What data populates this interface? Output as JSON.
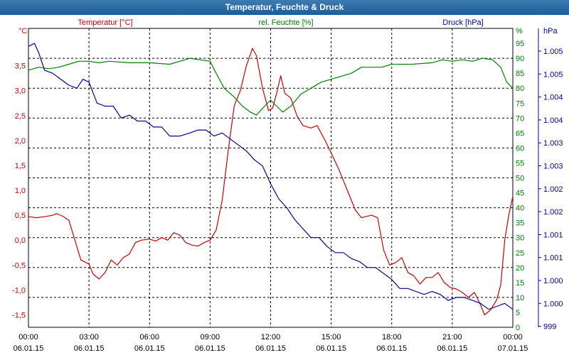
{
  "window": {
    "title": "Temperatur, Feuchte & Druck"
  },
  "colors": {
    "temperature": "#cc0000",
    "humidity": "#008000",
    "pressure": "#000099",
    "titlebar": "#2b6aa5",
    "grid": "#000000"
  },
  "series_labels": {
    "temperature": "Temperatur [°C]",
    "humidity": "rel. Feuchte [%]",
    "pressure": "Druck [hPa]"
  },
  "axis_units": {
    "left": "°C",
    "right_inner": "%",
    "right_outer": "hPa"
  },
  "chart_data": {
    "type": "line",
    "title": "Temperatur, Feuchte & Druck",
    "x_tick_labels": [
      [
        "00:00",
        "06.01.15"
      ],
      [
        "03:00",
        "06.01.15"
      ],
      [
        "06:00",
        "06.01.15"
      ],
      [
        "09:00",
        "06.01.15"
      ],
      [
        "12:00",
        "06.01.15"
      ],
      [
        "15:00",
        "06.01.15"
      ],
      [
        "18:00",
        "06.01.15"
      ],
      [
        "21:00",
        "06.01.15"
      ],
      [
        "00:00",
        "07.01.15"
      ]
    ],
    "x_range_hours": [
      0,
      24
    ],
    "grid": true,
    "axes": {
      "temperature": {
        "side": "left",
        "range": [
          -1.75,
          4.25
        ],
        "ticks": [
          "3,5",
          "3,0",
          "2,5",
          "2,0",
          "1,5",
          "1,0",
          "0,5",
          "0,0",
          "-0,5",
          "-1,0",
          "-1,5"
        ],
        "tick_values": [
          3.5,
          3.0,
          2.5,
          2.0,
          1.5,
          1.0,
          0.5,
          0.0,
          -0.5,
          -1.0,
          -1.5
        ]
      },
      "humidity": {
        "side": "right",
        "range": [
          0,
          100
        ],
        "ticks": [
          "95",
          "90",
          "85",
          "80",
          "75",
          "70",
          "65",
          "60",
          "55",
          "50",
          "45",
          "40",
          "35",
          "30",
          "25",
          "20",
          "15",
          "10",
          "5",
          "0"
        ],
        "tick_values": [
          95,
          90,
          85,
          80,
          75,
          70,
          65,
          60,
          55,
          50,
          45,
          40,
          35,
          30,
          25,
          20,
          15,
          10,
          5,
          0
        ]
      },
      "pressure": {
        "side": "right-outer",
        "ticks": [
          "1.005",
          "1.005",
          "1.004",
          "1.004",
          "1.003",
          "1.003",
          "1.002",
          "1.002",
          "1.001",
          "1.001",
          "1.000",
          "1.000",
          "999"
        ]
      }
    },
    "series": [
      {
        "name": "Temperatur [°C]",
        "axis": "temperature",
        "points": [
          [
            0,
            0.47
          ],
          [
            0.4,
            0.45
          ],
          [
            0.8,
            0.47
          ],
          [
            1.2,
            0.5
          ],
          [
            1.4,
            0.53
          ],
          [
            1.7,
            0.48
          ],
          [
            2.0,
            0.4
          ],
          [
            2.3,
            0.0
          ],
          [
            2.6,
            -0.4
          ],
          [
            3.0,
            -0.48
          ],
          [
            3.2,
            -0.68
          ],
          [
            3.5,
            -0.78
          ],
          [
            3.8,
            -0.65
          ],
          [
            4.1,
            -0.4
          ],
          [
            4.4,
            -0.5
          ],
          [
            4.7,
            -0.35
          ],
          [
            5.0,
            -0.28
          ],
          [
            5.3,
            -0.05
          ],
          [
            5.6,
            0.0
          ],
          [
            6.0,
            0.02
          ],
          [
            6.3,
            -0.02
          ],
          [
            6.6,
            0.05
          ],
          [
            6.9,
            0.0
          ],
          [
            7.2,
            0.15
          ],
          [
            7.5,
            0.1
          ],
          [
            7.8,
            -0.05
          ],
          [
            8.1,
            -0.1
          ],
          [
            8.4,
            -0.12
          ],
          [
            8.7,
            -0.05
          ],
          [
            9.0,
            0.0
          ],
          [
            9.3,
            0.2
          ],
          [
            9.6,
            0.8
          ],
          [
            9.9,
            1.8
          ],
          [
            10.2,
            2.7
          ],
          [
            10.5,
            3.0
          ],
          [
            10.8,
            3.5
          ],
          [
            11.1,
            3.85
          ],
          [
            11.3,
            3.7
          ],
          [
            11.6,
            3.05
          ],
          [
            11.9,
            2.6
          ],
          [
            12.1,
            2.65
          ],
          [
            12.3,
            2.95
          ],
          [
            12.5,
            3.3
          ],
          [
            12.7,
            2.95
          ],
          [
            13.0,
            2.85
          ],
          [
            13.3,
            2.5
          ],
          [
            13.6,
            2.3
          ],
          [
            14.0,
            2.25
          ],
          [
            14.3,
            2.3
          ],
          [
            14.7,
            2.0
          ],
          [
            15.0,
            1.75
          ],
          [
            15.4,
            1.4
          ],
          [
            15.8,
            1.0
          ],
          [
            16.2,
            0.6
          ],
          [
            16.5,
            0.45
          ],
          [
            17.0,
            0.5
          ],
          [
            17.3,
            0.45
          ],
          [
            17.6,
            -0.2
          ],
          [
            17.9,
            -0.5
          ],
          [
            18.2,
            -0.45
          ],
          [
            18.5,
            -0.35
          ],
          [
            18.8,
            -0.65
          ],
          [
            19.1,
            -0.72
          ],
          [
            19.4,
            -0.88
          ],
          [
            19.7,
            -0.75
          ],
          [
            20.0,
            -0.75
          ],
          [
            20.3,
            -0.65
          ],
          [
            20.6,
            -0.85
          ],
          [
            20.9,
            -0.95
          ],
          [
            21.2,
            -0.98
          ],
          [
            21.5,
            -1.05
          ],
          [
            21.8,
            -1.15
          ],
          [
            22.1,
            -1.05
          ],
          [
            22.4,
            -1.3
          ],
          [
            22.6,
            -1.5
          ],
          [
            22.9,
            -1.4
          ],
          [
            23.2,
            -1.2
          ],
          [
            23.4,
            -0.9
          ],
          [
            23.6,
            0.0
          ],
          [
            23.8,
            0.5
          ],
          [
            24.0,
            0.88
          ]
        ]
      },
      {
        "name": "rel. Feuchte [%]",
        "axis": "humidity",
        "points": [
          [
            0,
            86
          ],
          [
            0.5,
            87
          ],
          [
            1.0,
            86.5
          ],
          [
            1.5,
            87
          ],
          [
            2.0,
            88
          ],
          [
            2.5,
            89
          ],
          [
            3.0,
            89
          ],
          [
            3.5,
            88.5
          ],
          [
            4.0,
            89
          ],
          [
            5.0,
            88.5
          ],
          [
            6.0,
            88.5
          ],
          [
            7.0,
            88
          ],
          [
            7.5,
            89
          ],
          [
            8.0,
            90
          ],
          [
            8.5,
            89.5
          ],
          [
            9.0,
            89
          ],
          [
            9.3,
            85
          ],
          [
            9.7,
            80
          ],
          [
            10.2,
            77
          ],
          [
            10.6,
            74
          ],
          [
            11.0,
            72
          ],
          [
            11.3,
            71
          ],
          [
            11.7,
            74
          ],
          [
            12.0,
            76
          ],
          [
            12.3,
            74
          ],
          [
            12.6,
            72
          ],
          [
            13.0,
            74
          ],
          [
            13.5,
            78
          ],
          [
            14.0,
            80
          ],
          [
            14.5,
            82
          ],
          [
            15.0,
            83
          ],
          [
            15.5,
            84
          ],
          [
            16.0,
            85
          ],
          [
            16.5,
            87
          ],
          [
            17.0,
            87
          ],
          [
            17.5,
            87
          ],
          [
            18.0,
            88
          ],
          [
            19.0,
            88
          ],
          [
            20.0,
            88.5
          ],
          [
            20.5,
            89.5
          ],
          [
            21.0,
            89
          ],
          [
            21.5,
            89.5
          ],
          [
            22.0,
            89
          ],
          [
            22.5,
            90
          ],
          [
            23.0,
            89.5
          ],
          [
            23.4,
            87
          ],
          [
            23.7,
            82
          ],
          [
            24.0,
            80
          ]
        ]
      },
      {
        "name": "Druck [hPa]",
        "axis": "pressure",
        "points_axis_scale": "percent",
        "points": [
          [
            0,
            94
          ],
          [
            0.3,
            95
          ],
          [
            0.5,
            92
          ],
          [
            0.8,
            86
          ],
          [
            1.2,
            85
          ],
          [
            1.6,
            83
          ],
          [
            2.0,
            81
          ],
          [
            2.4,
            80
          ],
          [
            2.7,
            83
          ],
          [
            3.0,
            82
          ],
          [
            3.4,
            75
          ],
          [
            3.8,
            74
          ],
          [
            4.2,
            74
          ],
          [
            4.6,
            70
          ],
          [
            5.0,
            71
          ],
          [
            5.4,
            69
          ],
          [
            5.8,
            69
          ],
          [
            6.2,
            67
          ],
          [
            6.6,
            67
          ],
          [
            7.0,
            64
          ],
          [
            7.5,
            64
          ],
          [
            8.0,
            65
          ],
          [
            8.4,
            66
          ],
          [
            8.8,
            66
          ],
          [
            9.2,
            64
          ],
          [
            9.6,
            65
          ],
          [
            10.0,
            63
          ],
          [
            10.4,
            61
          ],
          [
            10.8,
            59
          ],
          [
            11.2,
            56
          ],
          [
            11.6,
            54
          ],
          [
            12.0,
            48
          ],
          [
            12.4,
            43
          ],
          [
            12.8,
            40
          ],
          [
            13.2,
            36
          ],
          [
            13.6,
            33
          ],
          [
            14.0,
            30
          ],
          [
            14.4,
            30
          ],
          [
            14.8,
            27
          ],
          [
            15.2,
            25
          ],
          [
            15.6,
            25
          ],
          [
            16.0,
            23
          ],
          [
            16.4,
            22
          ],
          [
            16.8,
            20
          ],
          [
            17.2,
            20
          ],
          [
            17.6,
            18
          ],
          [
            18.0,
            16
          ],
          [
            18.4,
            13
          ],
          [
            18.8,
            13
          ],
          [
            19.2,
            12
          ],
          [
            19.6,
            11
          ],
          [
            20.0,
            12
          ],
          [
            20.4,
            11
          ],
          [
            20.8,
            9
          ],
          [
            21.2,
            10
          ],
          [
            21.6,
            10
          ],
          [
            22.0,
            9
          ],
          [
            22.4,
            8
          ],
          [
            22.8,
            6
          ],
          [
            23.2,
            7
          ],
          [
            23.6,
            8
          ],
          [
            24.0,
            6
          ]
        ]
      }
    ]
  }
}
